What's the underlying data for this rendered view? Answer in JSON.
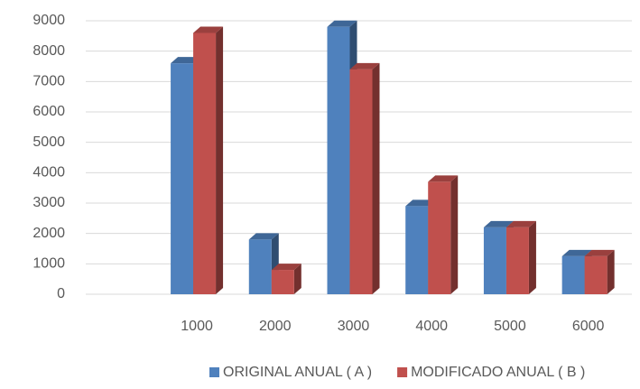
{
  "chart_data": {
    "type": "bar3d",
    "categories": [
      null,
      "1000",
      "2000",
      "3000",
      "4000",
      "5000",
      "6000"
    ],
    "series": [
      {
        "name": "ORIGINAL ANUAL ( A )",
        "color": "#4f81bd",
        "values": [
          null,
          7600,
          1800,
          8800,
          2900,
          2200,
          1250
        ]
      },
      {
        "name": "MODIFICADO ANUAL ( B )",
        "color": "#c0504d",
        "values": [
          null,
          8600,
          800,
          7400,
          3700,
          2200,
          1250
        ]
      }
    ],
    "ylim": [
      0,
      9000
    ],
    "yticks": [
      0,
      1000,
      2000,
      3000,
      4000,
      5000,
      6000,
      7000,
      8000,
      9000
    ],
    "grid": true,
    "legend": "bottom"
  }
}
